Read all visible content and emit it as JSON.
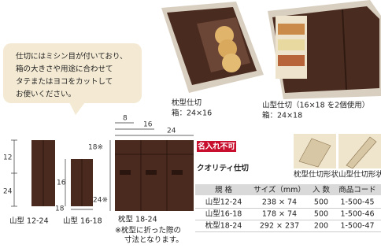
{
  "callout": {
    "lines": [
      "仕切にはミシン目が付いており、",
      "箱の大きさや用途に合わせて",
      "タテまたはヨコをカットして",
      "お使いください。"
    ]
  },
  "photos": [
    {
      "caption": "枕型仕切",
      "box": "箱：24×16"
    },
    {
      "caption": "山型仕切（16×18 を2個使用）",
      "box": "箱：24×18"
    }
  ],
  "diagrams": [
    {
      "label": "山型 12-24",
      "dimensions": [
        "12",
        "24"
      ]
    },
    {
      "label": "山型 16-18",
      "dimensions": [
        "16",
        "18"
      ]
    },
    {
      "label": "枕型 18-24",
      "dimensions": [
        "8",
        "16",
        "24",
        "18※",
        "24※"
      ],
      "note": [
        "※枕型に折った際の",
        "寸法となります。"
      ]
    }
  ],
  "product": {
    "badge": "名入れ不可",
    "title": "クオリティ仕切",
    "shapes": [
      "枕型仕切形状",
      "山型仕切形状"
    ]
  },
  "table": {
    "header": [
      "規 格",
      "サイズ（mm）",
      "入 数",
      "商品コード"
    ],
    "rows": [
      [
        "山型12-24",
        "238 × 74",
        "500",
        "1-500-45"
      ],
      [
        "山型16-18",
        "178 × 74",
        "500",
        "1-500-46"
      ],
      [
        "枕型18-24",
        "292 × 237",
        "200",
        "1-500-47"
      ]
    ]
  }
}
